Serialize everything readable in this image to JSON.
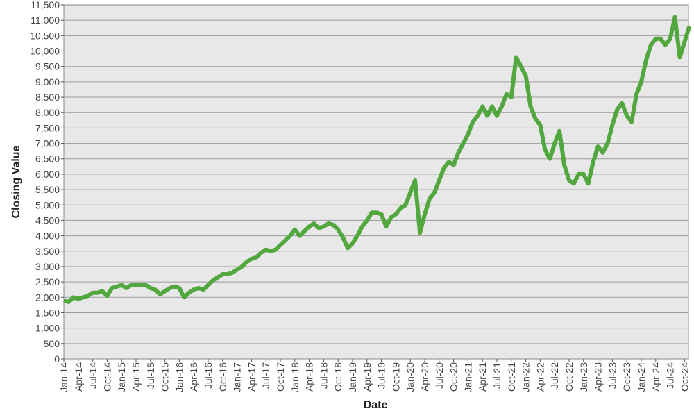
{
  "chart_data": {
    "type": "line",
    "title": "",
    "xlabel": "Date",
    "ylabel": "Closing Value",
    "ylim": [
      0,
      11500
    ],
    "y_ticks": [
      0,
      500,
      1000,
      1500,
      2000,
      2500,
      3000,
      3500,
      4000,
      4500,
      5000,
      5500,
      6000,
      6500,
      7000,
      7500,
      8000,
      8500,
      9000,
      9500,
      10000,
      10500,
      11000,
      11500
    ],
    "x_tick_labels": [
      "Jan-14",
      "Apr-14",
      "Jul-14",
      "Oct-14",
      "Jan-15",
      "Apr-15",
      "Jul-15",
      "Oct-15",
      "Jan-16",
      "Apr-16",
      "Jul-16",
      "Oct-16",
      "Jan-17",
      "Apr-17",
      "Jul-17",
      "Oct-17",
      "Jan-18",
      "Apr-18",
      "Jul-18",
      "Oct-18",
      "Jan-19",
      "Apr-19",
      "Jul-19",
      "Oct-19",
      "Jan-20",
      "Apr-20",
      "Jul-20",
      "Oct-20",
      "Jan-21",
      "Apr-21",
      "Jul-21",
      "Oct-21",
      "Jan-22",
      "Apr-22",
      "Jul-22",
      "Oct-22",
      "Jan-23",
      "Apr-23",
      "Jul-23",
      "Oct-23",
      "Jan-24",
      "Apr-24",
      "Jul-24",
      "Oct-24"
    ],
    "grid": true,
    "legend": "none",
    "colors": {
      "line": "#52a83f",
      "plot_background": "#e8e8e8",
      "grid": "#9a9a9a"
    },
    "series": [
      {
        "x": [
          "2014-01",
          "2014-02",
          "2014-03",
          "2014-04",
          "2014-05",
          "2014-06",
          "2014-07",
          "2014-08",
          "2014-09",
          "2014-10",
          "2014-11",
          "2014-12",
          "2015-01",
          "2015-02",
          "2015-03",
          "2015-04",
          "2015-05",
          "2015-06",
          "2015-07",
          "2015-08",
          "2015-09",
          "2015-10",
          "2015-11",
          "2015-12",
          "2016-01",
          "2016-02",
          "2016-03",
          "2016-04",
          "2016-05",
          "2016-06",
          "2016-07",
          "2016-08",
          "2016-09",
          "2016-10",
          "2016-11",
          "2016-12",
          "2017-01",
          "2017-02",
          "2017-03",
          "2017-04",
          "2017-05",
          "2017-06",
          "2017-07",
          "2017-08",
          "2017-09",
          "2017-10",
          "2017-11",
          "2017-12",
          "2018-01",
          "2018-02",
          "2018-03",
          "2018-04",
          "2018-05",
          "2018-06",
          "2018-07",
          "2018-08",
          "2018-09",
          "2018-10",
          "2018-11",
          "2018-12",
          "2019-01",
          "2019-02",
          "2019-03",
          "2019-04",
          "2019-05",
          "2019-06",
          "2019-07",
          "2019-08",
          "2019-09",
          "2019-10",
          "2019-11",
          "2019-12",
          "2020-01",
          "2020-02",
          "2020-03",
          "2020-04",
          "2020-05",
          "2020-06",
          "2020-07",
          "2020-08",
          "2020-09",
          "2020-10",
          "2020-11",
          "2020-12",
          "2021-01",
          "2021-02",
          "2021-03",
          "2021-04",
          "2021-05",
          "2021-06",
          "2021-07",
          "2021-08",
          "2021-09",
          "2021-10",
          "2021-11",
          "2021-12",
          "2022-01",
          "2022-02",
          "2022-03",
          "2022-04",
          "2022-05",
          "2022-06",
          "2022-07",
          "2022-08",
          "2022-09",
          "2022-10",
          "2022-11",
          "2022-12",
          "2023-01",
          "2023-02",
          "2023-03",
          "2023-04",
          "2023-05",
          "2023-06",
          "2023-07",
          "2023-08",
          "2023-09",
          "2023-10",
          "2023-11",
          "2023-12",
          "2024-01",
          "2024-02",
          "2024-03",
          "2024-04",
          "2024-05",
          "2024-06",
          "2024-07",
          "2024-08",
          "2024-09",
          "2024-10",
          "2024-11"
        ],
        "y": [
          1900,
          1850,
          2000,
          1950,
          2000,
          2050,
          2150,
          2150,
          2200,
          2050,
          2300,
          2350,
          2400,
          2300,
          2400,
          2400,
          2400,
          2400,
          2300,
          2250,
          2100,
          2200,
          2300,
          2350,
          2300,
          2000,
          2150,
          2250,
          2300,
          2250,
          2400,
          2550,
          2650,
          2750,
          2750,
          2800,
          2900,
          3000,
          3150,
          3250,
          3300,
          3450,
          3550,
          3500,
          3550,
          3700,
          3850,
          4000,
          4200,
          4000,
          4150,
          4300,
          4400,
          4250,
          4300,
          4400,
          4350,
          4200,
          3950,
          3600,
          3750,
          4000,
          4300,
          4500,
          4750,
          4750,
          4700,
          4300,
          4600,
          4700,
          4900,
          5000,
          5400,
          5800,
          4100,
          4700,
          5200,
          5400,
          5800,
          6200,
          6400,
          6300,
          6700,
          7000,
          7300,
          7700,
          7900,
          8200,
          7900,
          8200,
          7900,
          8200,
          8600,
          8500,
          9800,
          9500,
          9200,
          8200,
          7800,
          7600,
          6800,
          6500,
          7000,
          7400,
          6300,
          5800,
          5700,
          6000,
          6000,
          5700,
          6400,
          6900,
          6700,
          7000,
          7600,
          8100,
          8300,
          7900,
          7700,
          8600,
          9000,
          9700,
          10200,
          10400,
          10400,
          10200,
          10400,
          11100,
          9800,
          10300,
          10800
        ]
      }
    ]
  }
}
